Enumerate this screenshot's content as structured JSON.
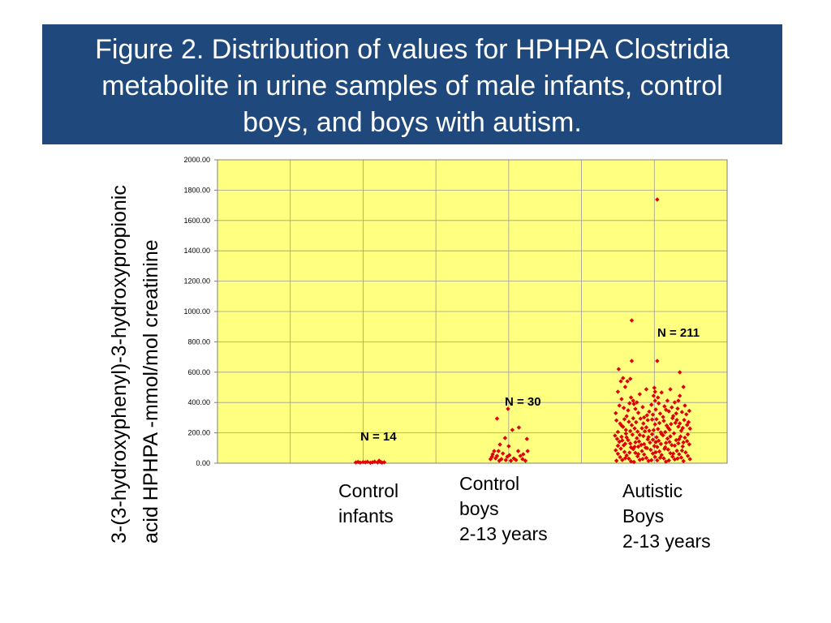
{
  "title_banner": {
    "background": "#1f497d",
    "text_color": "#ffffff"
  },
  "chart_data": {
    "type": "scatter",
    "marker": "diamond",
    "marker_color": "#e00000",
    "plot_background": "#ffff80",
    "grid": true,
    "title_lines": [
      "Figure 2. Distribution of values for HPHPA Clostridia",
      "metabolite in urine samples of male infants, control",
      "boys, and boys with autism."
    ],
    "ylabel_lines": [
      "3-(3-hydroxyphenyl)-3-hydroxypropionic",
      "acid HPHPA -mmol/mol creatinine"
    ],
    "xlim": [
      0,
      7
    ],
    "ylim": [
      0,
      2000
    ],
    "ytick_values": [
      0,
      200,
      400,
      600,
      800,
      1000,
      1200,
      1400,
      1600,
      1800,
      2000
    ],
    "ytick_labels": [
      "0.00",
      "200.00",
      "400.00",
      "600.00",
      "800.00",
      "1000.00",
      "1200.00",
      "1400.00",
      "1600.00",
      "1800.00",
      "2000.00"
    ],
    "series": [
      {
        "label_lines": [
          "Control",
          "infants"
        ],
        "n_label": "N = 14",
        "points": [
          [
            1.9,
            5
          ],
          [
            1.93,
            8
          ],
          [
            1.96,
            4
          ],
          [
            2.0,
            7
          ],
          [
            2.03,
            6
          ],
          [
            2.06,
            9
          ],
          [
            2.1,
            3
          ],
          [
            2.13,
            6
          ],
          [
            2.16,
            10
          ],
          [
            2.2,
            5
          ],
          [
            2.22,
            16
          ],
          [
            2.24,
            8
          ],
          [
            2.26,
            4
          ],
          [
            2.29,
            6
          ]
        ]
      },
      {
        "label_lines": [
          "Control",
          "boys",
          "2-13 years"
        ],
        "n_label": "N = 30",
        "points": [
          [
            3.84,
            294
          ],
          [
            3.99,
            358
          ],
          [
            4.05,
            219
          ],
          [
            4.14,
            235
          ],
          [
            3.95,
            166
          ],
          [
            4.25,
            160
          ],
          [
            3.88,
            123
          ],
          [
            4.0,
            112
          ],
          [
            4.13,
            80
          ],
          [
            3.8,
            80
          ],
          [
            3.86,
            80
          ],
          [
            3.92,
            64
          ],
          [
            3.84,
            48
          ],
          [
            3.78,
            59
          ],
          [
            4.2,
            59
          ],
          [
            3.98,
            43
          ],
          [
            4.07,
            32
          ],
          [
            4.16,
            48
          ],
          [
            4.26,
            80
          ],
          [
            3.75,
            27
          ],
          [
            3.9,
            27
          ],
          [
            3.96,
            21
          ],
          [
            4.03,
            16
          ],
          [
            4.1,
            21
          ],
          [
            4.19,
            27
          ],
          [
            3.82,
            32
          ],
          [
            4.01,
            53
          ],
          [
            3.87,
            16
          ],
          [
            4.23,
            16
          ],
          [
            3.77,
            43
          ]
        ]
      },
      {
        "label_lines": [
          "Autistic",
          "Boys",
          "2-13 years"
        ],
        "n_label": "N = 211",
        "points": [
          [
            6.04,
            1738
          ],
          [
            5.69,
            941
          ],
          [
            5.69,
            674
          ],
          [
            6.04,
            674
          ],
          [
            5.51,
            620
          ],
          [
            6.35,
            599
          ],
          [
            5.57,
            561
          ],
          [
            5.63,
            540
          ],
          [
            5.54,
            540
          ],
          [
            5.67,
            556
          ],
          [
            5.6,
            503
          ],
          [
            5.5,
            471
          ],
          [
            6.0,
            497
          ],
          [
            5.89,
            487
          ],
          [
            6.01,
            471
          ],
          [
            5.99,
            444
          ],
          [
            6.05,
            433
          ],
          [
            5.68,
            433
          ],
          [
            6.33,
            412
          ],
          [
            6.35,
            444
          ],
          [
            6.18,
            412
          ],
          [
            5.71,
            412
          ],
          [
            6.01,
            412
          ],
          [
            5.8,
            455
          ],
          [
            6.1,
            466
          ],
          [
            6.22,
            487
          ],
          [
            5.76,
            401
          ],
          [
            6.4,
            503
          ],
          [
            5.55,
            423
          ],
          [
            6.28,
            401
          ],
          [
            5.52,
            380
          ],
          [
            5.58,
            364
          ],
          [
            5.64,
            348
          ],
          [
            5.72,
            390
          ],
          [
            5.78,
            332
          ],
          [
            5.84,
            370
          ],
          [
            5.9,
            316
          ],
          [
            5.96,
            385
          ],
          [
            6.02,
            354
          ],
          [
            6.08,
            327
          ],
          [
            6.14,
            375
          ],
          [
            6.2,
            342
          ],
          [
            6.26,
            311
          ],
          [
            6.32,
            360
          ],
          [
            6.38,
            337
          ],
          [
            6.44,
            322
          ],
          [
            6.48,
            345
          ],
          [
            5.47,
            330
          ],
          [
            5.62,
            310
          ],
          [
            5.74,
            358
          ],
          [
            5.86,
            302
          ],
          [
            5.93,
            340
          ],
          [
            6.06,
            395
          ],
          [
            6.12,
            305
          ],
          [
            6.24,
            368
          ],
          [
            6.3,
            328
          ],
          [
            6.42,
            380
          ],
          [
            5.66,
            395
          ],
          [
            5.98,
            320
          ],
          [
            6.16,
            352
          ],
          [
            5.48,
            282
          ],
          [
            5.53,
            261
          ],
          [
            5.57,
            240
          ],
          [
            5.61,
            219
          ],
          [
            5.65,
            273
          ],
          [
            5.69,
            251
          ],
          [
            5.73,
            229
          ],
          [
            5.77,
            208
          ],
          [
            5.81,
            294
          ],
          [
            5.85,
            262
          ],
          [
            5.89,
            236
          ],
          [
            5.93,
            214
          ],
          [
            5.97,
            288
          ],
          [
            6.01,
            256
          ],
          [
            6.05,
            225
          ],
          [
            6.09,
            203
          ],
          [
            6.13,
            279
          ],
          [
            6.17,
            248
          ],
          [
            6.21,
            221
          ],
          [
            6.25,
            297
          ],
          [
            6.29,
            266
          ],
          [
            6.33,
            241
          ],
          [
            6.37,
            214
          ],
          [
            6.41,
            285
          ],
          [
            6.45,
            252
          ],
          [
            6.49,
            228
          ],
          [
            5.5,
            206
          ],
          [
            5.59,
            290
          ],
          [
            5.67,
            212
          ],
          [
            5.75,
            270
          ],
          [
            5.83,
            230
          ],
          [
            5.91,
            284
          ],
          [
            5.99,
            218
          ],
          [
            6.07,
            265
          ],
          [
            6.15,
            205
          ],
          [
            6.23,
            258
          ],
          [
            6.31,
            285
          ],
          [
            6.39,
            232
          ],
          [
            6.47,
            271
          ],
          [
            5.55,
            248
          ],
          [
            5.71,
            296
          ],
          [
            5.87,
            210
          ],
          [
            6.03,
            290
          ],
          [
            6.19,
            233
          ],
          [
            6.35,
            262
          ],
          [
            5.46,
            182
          ],
          [
            5.49,
            160
          ],
          [
            5.52,
            141
          ],
          [
            5.55,
            174
          ],
          [
            5.58,
            118
          ],
          [
            5.61,
            195
          ],
          [
            5.64,
            152
          ],
          [
            5.67,
            130
          ],
          [
            5.7,
            188
          ],
          [
            5.73,
            108
          ],
          [
            5.76,
            165
          ],
          [
            5.79,
            143
          ],
          [
            5.82,
            121
          ],
          [
            5.85,
            179
          ],
          [
            5.88,
            102
          ],
          [
            5.91,
            157
          ],
          [
            5.94,
            136
          ],
          [
            5.97,
            191
          ],
          [
            6.0,
            113
          ],
          [
            6.03,
            171
          ],
          [
            6.06,
            148
          ],
          [
            6.09,
            127
          ],
          [
            6.12,
            184
          ],
          [
            6.15,
            105
          ],
          [
            6.18,
            162
          ],
          [
            6.21,
            140
          ],
          [
            6.24,
            119
          ],
          [
            6.27,
            197
          ],
          [
            6.3,
            152
          ],
          [
            6.33,
            131
          ],
          [
            6.36,
            176
          ],
          [
            6.39,
            110
          ],
          [
            6.42,
            168
          ],
          [
            6.45,
            145
          ],
          [
            6.48,
            124
          ],
          [
            5.5,
            115
          ],
          [
            5.56,
            150
          ],
          [
            5.62,
            170
          ],
          [
            5.68,
            104
          ],
          [
            5.74,
            138
          ],
          [
            5.8,
            186
          ],
          [
            5.86,
            126
          ],
          [
            5.92,
            172
          ],
          [
            5.98,
            155
          ],
          [
            6.04,
            107
          ],
          [
            6.1,
            192
          ],
          [
            6.16,
            134
          ],
          [
            6.22,
            177
          ],
          [
            6.28,
            116
          ],
          [
            6.34,
            158
          ],
          [
            6.4,
            137
          ],
          [
            6.46,
            190
          ],
          [
            5.6,
            128
          ],
          [
            5.78,
            109
          ],
          [
            6.02,
            139
          ],
          [
            5.47,
            85
          ],
          [
            5.5,
            62
          ],
          [
            5.53,
            40
          ],
          [
            5.56,
            21
          ],
          [
            5.59,
            74
          ],
          [
            5.62,
            51
          ],
          [
            5.65,
            30
          ],
          [
            5.68,
            12
          ],
          [
            5.71,
            93
          ],
          [
            5.74,
            68
          ],
          [
            5.77,
            45
          ],
          [
            5.8,
            22
          ],
          [
            5.83,
            80
          ],
          [
            5.86,
            57
          ],
          [
            5.89,
            35
          ],
          [
            5.92,
            15
          ],
          [
            5.95,
            88
          ],
          [
            5.98,
            64
          ],
          [
            6.01,
            41
          ],
          [
            6.04,
            19
          ],
          [
            6.07,
            77
          ],
          [
            6.1,
            54
          ],
          [
            6.13,
            32
          ],
          [
            6.16,
            10
          ],
          [
            6.19,
            90
          ],
          [
            6.22,
            66
          ],
          [
            6.25,
            43
          ],
          [
            6.28,
            25
          ],
          [
            6.31,
            82
          ],
          [
            6.34,
            59
          ],
          [
            6.37,
            37
          ],
          [
            6.4,
            14
          ],
          [
            6.43,
            71
          ],
          [
            6.46,
            48
          ],
          [
            6.49,
            27
          ],
          [
            5.48,
            16
          ],
          [
            5.54,
            96
          ],
          [
            5.6,
            33
          ],
          [
            5.66,
            70
          ],
          [
            5.72,
            8
          ],
          [
            5.78,
            60
          ],
          [
            5.84,
            28
          ],
          [
            5.9,
            99
          ],
          [
            5.96,
            20
          ],
          [
            6.02,
            72
          ],
          [
            6.08,
            36
          ],
          [
            6.14,
            95
          ],
          [
            6.2,
            18
          ],
          [
            6.26,
            63
          ],
          [
            6.32,
            31
          ],
          [
            6.38,
            83
          ]
        ]
      }
    ]
  }
}
